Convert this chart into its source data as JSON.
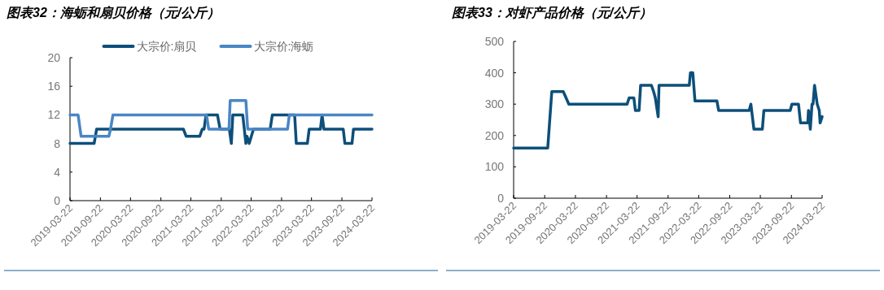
{
  "chart_data": [
    {
      "type": "line",
      "title": "图表32：海蛎和扇贝价格（元/公斤）",
      "legend": "top",
      "grid": false,
      "xlim": [
        "2019-03-22",
        "2024-03-22"
      ],
      "xticks": [
        "2019-03-22",
        "2019-09-22",
        "2020-03-22",
        "2020-09-22",
        "2021-03-22",
        "2021-09-22",
        "2022-03-22",
        "2022-09-22",
        "2023-03-22",
        "2023-09-22",
        "2024-03-22"
      ],
      "ylim": [
        0,
        20
      ],
      "yticks": [
        0,
        4,
        8,
        12,
        16,
        20
      ],
      "series": [
        {
          "name": "大宗价:扇贝",
          "color": "#0d4f7a",
          "x": [
            "2019-03-22",
            "2019-08-15",
            "2019-08-30",
            "2021-02-05",
            "2021-02-22",
            "2021-05-15",
            "2021-05-30",
            "2021-06-10",
            "2021-06-22",
            "2021-08-30",
            "2021-09-15",
            "2021-11-10",
            "2021-11-22",
            "2021-12-01",
            "2022-01-30",
            "2022-02-18",
            "2022-02-25",
            "2022-03-10",
            "2022-04-05",
            "2022-07-15",
            "2022-07-28",
            "2022-12-10",
            "2022-12-20",
            "2023-02-25",
            "2023-03-08",
            "2023-05-15",
            "2023-05-25",
            "2023-06-05",
            "2023-09-30",
            "2023-10-10",
            "2023-11-22",
            "2023-12-01",
            "2024-03-22"
          ],
          "values": [
            8,
            8,
            10,
            10,
            9,
            9,
            10,
            10,
            12,
            12,
            10,
            10,
            8,
            12,
            12,
            8,
            9,
            8,
            10,
            10,
            12,
            12,
            8,
            8,
            10,
            10,
            12,
            10,
            10,
            8,
            8,
            10,
            10
          ]
        },
        {
          "name": "大宗价:海蛎",
          "color": "#4a86c5",
          "x": [
            "2019-03-22",
            "2019-05-10",
            "2019-05-28",
            "2019-11-12",
            "2019-11-22",
            "2019-12-07",
            "2021-06-25",
            "2021-07-08",
            "2021-11-08",
            "2021-11-15",
            "2022-02-18",
            "2022-03-01",
            "2022-10-28",
            "2022-11-08",
            "2024-03-22"
          ],
          "values": [
            12,
            12,
            9,
            9,
            10,
            12,
            12,
            10,
            10,
            14,
            14,
            10,
            10,
            12,
            12
          ]
        }
      ]
    },
    {
      "type": "line",
      "title": "图表33：对虾产品价格（元/公斤）",
      "grid": false,
      "xlim": [
        "2019-03-22",
        "2024-03-22"
      ],
      "xticks": [
        "2019-03-22",
        "2019-09-22",
        "2020-03-22",
        "2020-09-22",
        "2021-03-22",
        "2021-09-22",
        "2022-03-22",
        "2022-09-22",
        "2023-03-22",
        "2023-09-22",
        "2024-03-22"
      ],
      "ylim": [
        0,
        500
      ],
      "yticks": [
        0,
        100,
        200,
        300,
        400,
        500
      ],
      "color": "#0d4f7a",
      "x": [
        "2019-03-22",
        "2019-10-10",
        "2019-11-03",
        "2020-01-10",
        "2020-02-12",
        "2021-01-22",
        "2021-02-03",
        "2021-03-03",
        "2021-03-12",
        "2021-04-03",
        "2021-04-12",
        "2021-06-15",
        "2021-06-28",
        "2021-07-08",
        "2021-07-25",
        "2021-07-30",
        "2022-01-25",
        "2022-02-01",
        "2022-02-15",
        "2022-02-28",
        "2022-07-08",
        "2022-07-18",
        "2023-01-15",
        "2023-01-25",
        "2023-02-12",
        "2023-04-03",
        "2023-04-12",
        "2023-09-15",
        "2023-09-25",
        "2023-11-03",
        "2023-11-15",
        "2023-12-28",
        "2024-01-01",
        "2024-01-12",
        "2024-01-22",
        "2024-01-28",
        "2024-02-06",
        "2024-02-22",
        "2024-03-05",
        "2024-03-10",
        "2024-03-22"
      ],
      "values": [
        160,
        160,
        340,
        340,
        300,
        300,
        320,
        320,
        280,
        280,
        360,
        360,
        340,
        320,
        260,
        360,
        360,
        400,
        400,
        310,
        310,
        280,
        280,
        300,
        220,
        220,
        280,
        280,
        300,
        300,
        240,
        240,
        280,
        220,
        300,
        300,
        360,
        300,
        280,
        240,
        260
      ]
    }
  ]
}
